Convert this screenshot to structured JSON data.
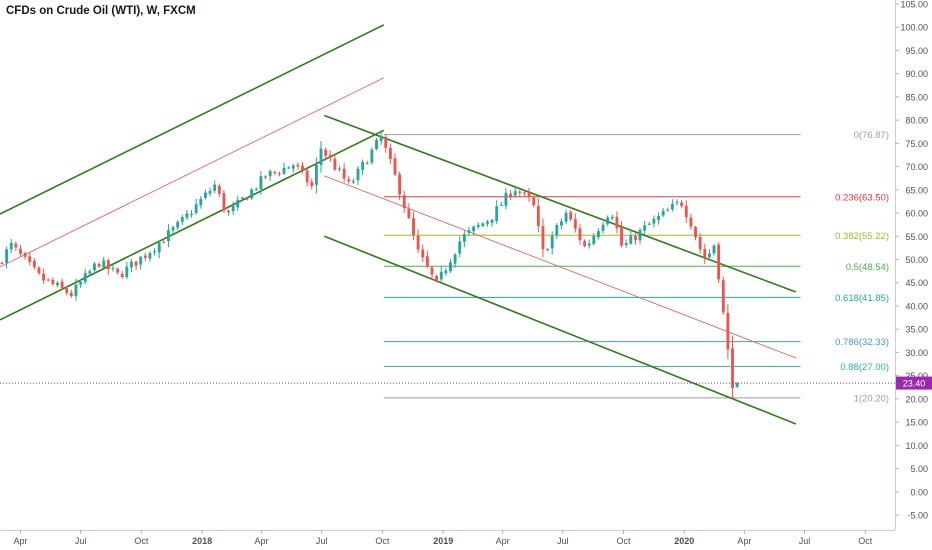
{
  "chart_data": {
    "type": "candlestick",
    "title": "CFDs on Crude Oil (WTI), W, FXCM",
    "x_ticks": [
      {
        "label": "Apr",
        "date": "2017-04-01",
        "bold": false
      },
      {
        "label": "Jul",
        "date": "2017-07-01",
        "bold": false
      },
      {
        "label": "Oct",
        "date": "2017-10-01",
        "bold": false
      },
      {
        "label": "2018",
        "date": "2018-01-01",
        "bold": true
      },
      {
        "label": "Apr",
        "date": "2018-04-01",
        "bold": false
      },
      {
        "label": "Jul",
        "date": "2018-07-01",
        "bold": false
      },
      {
        "label": "Oct",
        "date": "2018-10-01",
        "bold": false
      },
      {
        "label": "2019",
        "date": "2019-01-01",
        "bold": true
      },
      {
        "label": "Apr",
        "date": "2019-04-01",
        "bold": false
      },
      {
        "label": "Jul",
        "date": "2019-07-01",
        "bold": false
      },
      {
        "label": "Oct",
        "date": "2019-10-01",
        "bold": false
      },
      {
        "label": "2020",
        "date": "2020-01-01",
        "bold": true
      },
      {
        "label": "Apr",
        "date": "2020-04-01",
        "bold": false
      },
      {
        "label": "Jul",
        "date": "2020-07-01",
        "bold": false
      },
      {
        "label": "Oct",
        "date": "2020-10-01",
        "bold": false
      }
    ],
    "y_ticks": [
      "105.00",
      "100.00",
      "95.00",
      "90.00",
      "85.00",
      "80.00",
      "75.00",
      "70.00",
      "65.00",
      "60.00",
      "55.00",
      "50.00",
      "45.00",
      "40.00",
      "35.00",
      "30.00",
      "25.00",
      "20.00",
      "15.00",
      "10.00",
      "5.00",
      "0.00",
      "-5.00"
    ],
    "ylim": [
      -8,
      106
    ],
    "last_price": {
      "value": 23.4,
      "label": "23.40",
      "color": "#9c27b0"
    },
    "colors": {
      "up": "#26a69a",
      "down": "#ef5350",
      "channel": "#2e7d16",
      "midline": "#ef5350"
    },
    "fib_levels": [
      {
        "ratio": 0,
        "value": 76.87,
        "label": "0(76.87)",
        "color": "#9e9e9e"
      },
      {
        "ratio": 0.236,
        "value": 63.5,
        "label": "0.236(63.50)",
        "color": "#e53935"
      },
      {
        "ratio": 0.382,
        "value": 55.22,
        "label": "0.382(55.22)",
        "color": "#a5b821"
      },
      {
        "ratio": 0.5,
        "value": 48.54,
        "label": "0.5(48.54)",
        "color": "#4caf50"
      },
      {
        "ratio": 0.618,
        "value": 41.85,
        "label": "0.618(41.85)",
        "color": "#26a69a"
      },
      {
        "ratio": 0.786,
        "value": 32.33,
        "label": "0.786(32.33)",
        "color": "#3e9bd6"
      },
      {
        "ratio": 0.88,
        "value": 27.0,
        "label": "0.88(27.00)",
        "color": "#26b5a0"
      },
      {
        "ratio": 1,
        "value": 20.2,
        "label": "1(20.20)",
        "color": "#9e9e9e"
      }
    ],
    "fib_start_date": "2018-10-03",
    "fib_end_date": "2020-06-25",
    "trendlines": [
      {
        "name": "upchannel-top",
        "kind": "channel",
        "start": [
          "2017-03-01",
          59.8
        ],
        "end": [
          "2018-10-03",
          100.5
        ]
      },
      {
        "name": "upchannel-bottom",
        "kind": "channel",
        "start": [
          "2017-03-01",
          37.0
        ],
        "end": [
          "2018-10-03",
          77.8
        ]
      },
      {
        "name": "upchannel-mid",
        "kind": "midline",
        "start": [
          "2017-03-01",
          48.4
        ],
        "end": [
          "2018-10-03",
          89.1
        ]
      },
      {
        "name": "downchannel-top",
        "kind": "channel",
        "start": [
          "2018-07-05",
          81.0
        ],
        "end": [
          "2020-06-18",
          43.0
        ]
      },
      {
        "name": "downchannel-bottom",
        "kind": "channel",
        "start": [
          "2018-07-05",
          55.0
        ],
        "end": [
          "2020-06-18",
          14.6
        ]
      },
      {
        "name": "downchannel-mid",
        "kind": "midline",
        "start": [
          "2018-07-05",
          68.0
        ],
        "end": [
          "2020-06-18",
          28.8
        ]
      }
    ],
    "anchors": [
      [
        "2017-03-01",
        49
      ],
      [
        "2017-03-22",
        53
      ],
      [
        "2017-05-05",
        46
      ],
      [
        "2017-06-21",
        42.5
      ],
      [
        "2017-08-01",
        49.5
      ],
      [
        "2017-08-31",
        46.5
      ],
      [
        "2017-10-15",
        51.5
      ],
      [
        "2017-12-01",
        57.5
      ],
      [
        "2018-01-24",
        66
      ],
      [
        "2018-02-12",
        59.5
      ],
      [
        "2018-04-12",
        68
      ],
      [
        "2018-05-24",
        70.5
      ],
      [
        "2018-06-21",
        65.5
      ],
      [
        "2018-07-03",
        74.2
      ],
      [
        "2018-08-16",
        65.8
      ],
      [
        "2018-10-03",
        76.3
      ],
      [
        "2018-10-31",
        65
      ],
      [
        "2018-11-28",
        51.5
      ],
      [
        "2018-12-26",
        44.5
      ],
      [
        "2019-02-01",
        54.5
      ],
      [
        "2019-03-18",
        59
      ],
      [
        "2019-04-22",
        65.5
      ],
      [
        "2019-05-21",
        62
      ],
      [
        "2019-06-05",
        51.5
      ],
      [
        "2019-07-10",
        60
      ],
      [
        "2019-08-08",
        52.5
      ],
      [
        "2019-09-16",
        61
      ],
      [
        "2019-10-03",
        52.5
      ],
      [
        "2019-11-08",
        57
      ],
      [
        "2019-12-31",
        62.5
      ],
      [
        "2020-01-15",
        58
      ],
      [
        "2020-01-31",
        51.5
      ],
      [
        "2020-02-07",
        50
      ],
      [
        "2020-02-20",
        53.5
      ],
      [
        "2020-02-28",
        44.5
      ],
      [
        "2020-03-09",
        32
      ],
      [
        "2020-03-18",
        23.4
      ]
    ]
  }
}
